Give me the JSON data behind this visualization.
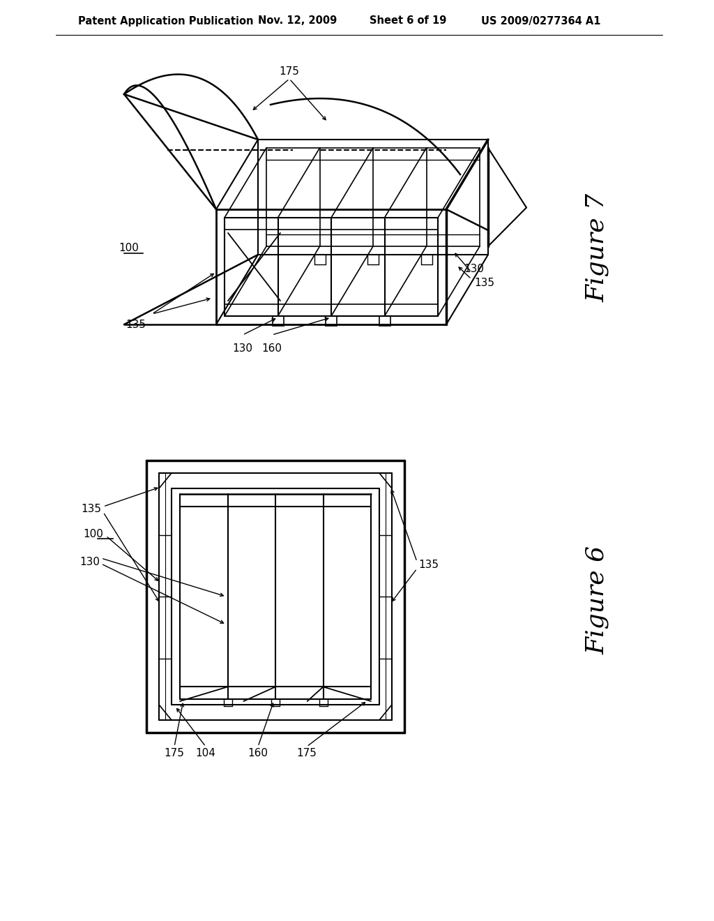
{
  "bg_color": "#ffffff",
  "line_color": "#000000",
  "header_text": "Patent Application Publication",
  "header_date": "Nov. 12, 2009",
  "header_sheet": "Sheet 6 of 19",
  "header_patent": "US 2009/0277364 A1",
  "fig7_label": "Figure 7",
  "fig6_label": "Figure 6",
  "label_100_fig7": "100",
  "label_175_fig7": "175",
  "label_135_fig7_left": "135",
  "label_135_fig7_right": "135",
  "label_130_fig7_right": "130",
  "label_130_fig7_bottom": "130",
  "label_160_fig7": "160",
  "label_100_fig6": "100",
  "label_130_fig6": "130",
  "label_135_fig6_left": "135",
  "label_135_fig6_right": "135",
  "label_175_fig6_left": "175",
  "label_104_fig6": "104",
  "label_160_fig6": "160",
  "label_175_fig6_right": "175"
}
